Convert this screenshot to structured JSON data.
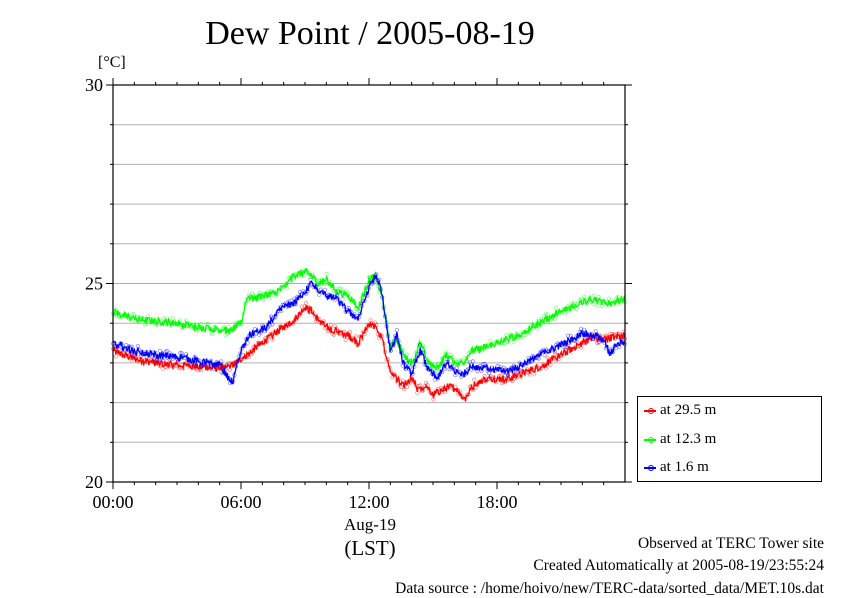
{
  "chart_data": {
    "type": "line",
    "title": "Dew Point / 2005-08-19",
    "ylabel": "[°C]",
    "xlabel": "(LST)",
    "date_label": "Aug-19",
    "ylim": [
      20,
      30
    ],
    "yticks": [
      {
        "v": 20,
        "label": "20"
      },
      {
        "v": 25,
        "label": "25"
      },
      {
        "v": 30,
        "label": "30"
      }
    ],
    "y_gridlines": [
      21,
      22,
      23,
      24,
      25,
      26,
      27,
      28,
      29
    ],
    "xlim_hours": [
      0,
      24
    ],
    "xticks": [
      {
        "h": 0,
        "label": "00:00"
      },
      {
        "h": 6,
        "label": "06:00"
      },
      {
        "h": 12,
        "label": "12:00"
      },
      {
        "h": 18,
        "label": "18:00"
      }
    ],
    "grid": "horizontal",
    "legend_position": "bottom-right",
    "series": [
      {
        "name": "at 29.5 m",
        "color": "#ff0000",
        "points": [
          [
            0,
            23.3
          ],
          [
            1,
            23.1
          ],
          [
            2,
            23.0
          ],
          [
            3,
            22.95
          ],
          [
            4,
            22.9
          ],
          [
            5,
            22.85
          ],
          [
            5.5,
            22.9
          ],
          [
            6,
            23.1
          ],
          [
            6.5,
            23.3
          ],
          [
            7,
            23.5
          ],
          [
            7.5,
            23.7
          ],
          [
            8,
            23.9
          ],
          [
            8.5,
            24.1
          ],
          [
            9,
            24.4
          ],
          [
            9.3,
            24.3
          ],
          [
            9.6,
            24.1
          ],
          [
            10,
            23.9
          ],
          [
            10.5,
            23.8
          ],
          [
            11,
            23.7
          ],
          [
            11.5,
            23.5
          ],
          [
            12,
            24.0
          ],
          [
            12.3,
            23.9
          ],
          [
            12.6,
            23.6
          ],
          [
            13,
            22.8
          ],
          [
            13.3,
            22.6
          ],
          [
            13.6,
            22.4
          ],
          [
            14,
            22.6
          ],
          [
            14.3,
            22.3
          ],
          [
            14.6,
            22.4
          ],
          [
            15,
            22.2
          ],
          [
            15.4,
            22.3
          ],
          [
            15.8,
            22.4
          ],
          [
            16.2,
            22.3
          ],
          [
            16.5,
            22.1
          ],
          [
            17,
            22.5
          ],
          [
            17.5,
            22.6
          ],
          [
            18,
            22.6
          ],
          [
            18.5,
            22.6
          ],
          [
            19,
            22.7
          ],
          [
            20,
            22.9
          ],
          [
            21,
            23.2
          ],
          [
            22,
            23.5
          ],
          [
            22.5,
            23.65
          ],
          [
            23,
            23.6
          ],
          [
            23.5,
            23.65
          ],
          [
            24,
            23.7
          ]
        ]
      },
      {
        "name": "at 12.3 m",
        "color": "#00ff00",
        "points": [
          [
            0,
            24.3
          ],
          [
            1,
            24.1
          ],
          [
            2,
            24.05
          ],
          [
            3,
            24.0
          ],
          [
            4,
            23.9
          ],
          [
            5,
            23.85
          ],
          [
            5.5,
            23.8
          ],
          [
            6,
            24.0
          ],
          [
            6.3,
            24.7
          ],
          [
            6.6,
            24.6
          ],
          [
            7,
            24.7
          ],
          [
            7.5,
            24.75
          ],
          [
            8,
            24.9
          ],
          [
            8.5,
            25.2
          ],
          [
            9,
            25.3
          ],
          [
            9.3,
            25.2
          ],
          [
            9.6,
            25.0
          ],
          [
            10,
            25.1
          ],
          [
            10.5,
            24.8
          ],
          [
            11,
            24.7
          ],
          [
            11.5,
            24.4
          ],
          [
            12,
            25.1
          ],
          [
            12.3,
            25.2
          ],
          [
            12.6,
            24.7
          ],
          [
            13,
            23.4
          ],
          [
            13.3,
            23.6
          ],
          [
            13.6,
            23.2
          ],
          [
            14,
            23.0
          ],
          [
            14.4,
            23.5
          ],
          [
            14.8,
            23.0
          ],
          [
            15.2,
            22.9
          ],
          [
            15.6,
            23.2
          ],
          [
            16,
            23.0
          ],
          [
            16.4,
            23.0
          ],
          [
            16.8,
            23.3
          ],
          [
            17.5,
            23.4
          ],
          [
            18,
            23.5
          ],
          [
            18.5,
            23.6
          ],
          [
            19,
            23.7
          ],
          [
            20,
            24.0
          ],
          [
            21,
            24.3
          ],
          [
            22,
            24.55
          ],
          [
            22.5,
            24.6
          ],
          [
            23,
            24.5
          ],
          [
            23.5,
            24.55
          ],
          [
            24,
            24.6
          ]
        ]
      },
      {
        "name": "at 1.6 m",
        "color": "#0000ff",
        "points": [
          [
            0,
            23.5
          ],
          [
            1,
            23.3
          ],
          [
            2,
            23.2
          ],
          [
            3,
            23.15
          ],
          [
            4,
            23.05
          ],
          [
            5,
            22.95
          ],
          [
            5.3,
            22.7
          ],
          [
            5.6,
            22.5
          ],
          [
            6,
            23.3
          ],
          [
            6.4,
            23.7
          ],
          [
            6.8,
            23.8
          ],
          [
            7.2,
            23.9
          ],
          [
            7.6,
            24.2
          ],
          [
            8,
            24.4
          ],
          [
            8.5,
            24.5
          ],
          [
            9,
            24.8
          ],
          [
            9.3,
            25.0
          ],
          [
            9.6,
            24.8
          ],
          [
            10,
            24.7
          ],
          [
            10.5,
            24.6
          ],
          [
            11,
            24.3
          ],
          [
            11.5,
            24.1
          ],
          [
            12,
            24.9
          ],
          [
            12.3,
            25.2
          ],
          [
            12.6,
            24.8
          ],
          [
            13,
            23.3
          ],
          [
            13.3,
            23.7
          ],
          [
            13.6,
            23.0
          ],
          [
            14,
            22.7
          ],
          [
            14.4,
            23.3
          ],
          [
            14.8,
            22.8
          ],
          [
            15.2,
            22.6
          ],
          [
            15.6,
            23.0
          ],
          [
            16,
            22.8
          ],
          [
            16.4,
            22.7
          ],
          [
            16.8,
            22.9
          ],
          [
            17.5,
            22.9
          ],
          [
            18,
            22.8
          ],
          [
            18.5,
            22.8
          ],
          [
            19,
            22.9
          ],
          [
            20,
            23.2
          ],
          [
            21,
            23.45
          ],
          [
            22,
            23.75
          ],
          [
            22.5,
            23.7
          ],
          [
            23,
            23.6
          ],
          [
            23.3,
            23.2
          ],
          [
            23.6,
            23.5
          ],
          [
            24,
            23.5
          ]
        ]
      }
    ]
  },
  "footer": {
    "observed": "Observed at TERC Tower site",
    "created": "Created Automatically at 2005-08-19/23:55:24",
    "source": "Data source : /home/hoivo/new/TERC-data/sorted_data/MET.10s.dat"
  }
}
